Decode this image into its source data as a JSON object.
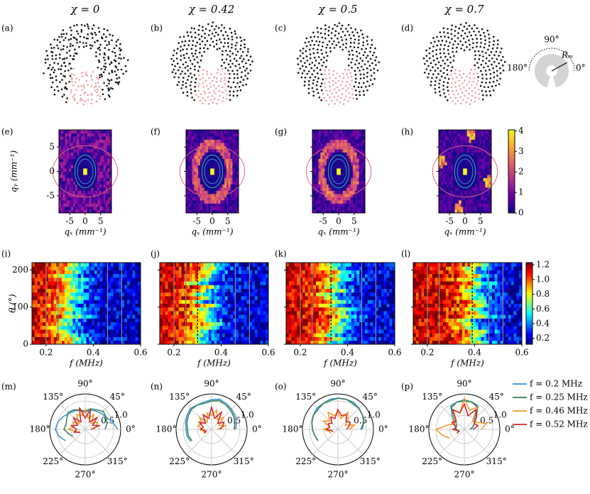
{
  "figure": {
    "column_titles": [
      "χ = 0",
      "χ = 0.42",
      "χ = 0.5",
      "χ = 0.7"
    ],
    "panel_labels": [
      "(a)",
      "(b)",
      "(c)",
      "(d)",
      "(e)",
      "(f)",
      "(g)",
      "(h)",
      "(i)",
      "(j)",
      "(k)",
      "(l)",
      "(m)",
      "(n)",
      "(o)",
      "(p)"
    ],
    "inset": {
      "angle_labels": [
        "90°",
        "180°",
        "0°"
      ],
      "radius_label": "Rₘ"
    },
    "momentum_maps": {
      "xlabel": "qₓ (mm⁻¹)",
      "ylabel": "qᵧ (mm⁻¹)",
      "xlim": [
        -8.5,
        8.5
      ],
      "ylim": [
        -8.5,
        8.5
      ],
      "xticks": [
        -5,
        0,
        5
      ],
      "yticks": [
        -5,
        0,
        5
      ],
      "colormap": "plasma",
      "clim": [
        0,
        4.05
      ],
      "cticks": [
        0,
        1,
        2,
        3,
        4
      ]
    },
    "spectra": {
      "xlabel": "f (MHz)",
      "ylabel": "θ (°)",
      "xlim": [
        0.14,
        0.6
      ],
      "ylim": [
        0,
        220
      ],
      "xticks": [
        0.2,
        0.4,
        0.6
      ],
      "yticks": [
        0,
        100,
        200
      ],
      "colormap": "jet",
      "clim": [
        0.12,
        1.23
      ],
      "cticks": [
        0.2,
        0.4,
        0.6,
        0.8,
        {
          "value": 1,
          "label": "1.0"
        },
        1.2
      ],
      "markers": [
        {
          "solid": [
            0.2,
            0.25,
            0.46,
            0.52
          ]
        },
        {
          "solid": [
            0.2,
            0.25,
            0.46,
            0.52
          ],
          "dashed": 0.3
        },
        {
          "solid": [
            0.2,
            0.25,
            0.46,
            0.52
          ],
          "dashed": 0.33
        },
        {
          "solid": [
            0.2,
            0.25,
            0.46,
            0.52
          ],
          "dashed": 0.39
        }
      ]
    },
    "legend": [
      {
        "name": "f = 0.2 MHz",
        "color": "#3a8fd6"
      },
      {
        "name": "f = 0.25 MHz",
        "color": "#2e7d4f"
      },
      {
        "name": "f = 0.46 MHz",
        "color": "#f39a1e"
      },
      {
        "name": "f = 0.52 MHz",
        "color": "#d62020"
      }
    ]
  },
  "chart_data": [
    {
      "type": "polar",
      "rlim": [
        0,
        1.25
      ],
      "rticks": [
        0.5,
        {
          "value": 1,
          "label": "1.0"
        }
      ],
      "angle_ticks": [
        {
          "value": 0,
          "label": "0°"
        },
        {
          "value": 45,
          "label": "45°"
        },
        {
          "value": 90,
          "label": "90°"
        },
        {
          "value": 135,
          "label": "135°"
        },
        {
          "value": 180,
          "label": "180°"
        },
        {
          "value": 225,
          "label": "225°"
        },
        {
          "value": 270,
          "label": "270°"
        },
        {
          "value": 315,
          "label": "315°"
        }
      ],
      "theta": [
        0,
        15,
        30,
        45,
        60,
        75,
        90,
        105,
        120,
        135,
        150,
        165,
        180,
        195,
        210
      ],
      "series": [
        {
          "values": [
            1.15,
            1.0,
            0.85,
            0.8,
            0.75,
            0.7,
            0.6,
            0.7,
            0.75,
            0.8,
            0.9,
            1.0,
            1.05,
            0.95,
            0.8
          ]
        },
        {
          "values": [
            0.7,
            0.8,
            0.85,
            0.9,
            0.8,
            0.75,
            0.65,
            0.7,
            0.8,
            0.85,
            0.75,
            0.7,
            0.75,
            0.6,
            0.5
          ]
        },
        {
          "values": [
            0.3,
            0.4,
            0.5,
            0.3,
            0.6,
            0.4,
            0.7,
            0.5,
            0.6,
            0.3,
            0.5,
            0.4,
            0.6,
            0.3,
            0.2
          ]
        },
        {
          "values": [
            0.2,
            0.5,
            0.3,
            0.6,
            0.3,
            0.7,
            0.4,
            0.8,
            0.3,
            0.6,
            0.3,
            0.5,
            0.3,
            0.4,
            0.2
          ]
        }
      ]
    },
    {
      "type": "polar",
      "rlim": [
        0,
        1.25
      ],
      "rticks": [
        0.5,
        {
          "value": 1,
          "label": "1.0"
        }
      ],
      "angle_ticks": [
        {
          "value": 0,
          "label": "0°"
        },
        {
          "value": 45,
          "label": "45°"
        },
        {
          "value": 90,
          "label": "90°"
        },
        {
          "value": 135,
          "label": "135°"
        },
        {
          "value": 180,
          "label": "180°"
        },
        {
          "value": 225,
          "label": "225°"
        },
        {
          "value": 270,
          "label": "270°"
        },
        {
          "value": 315,
          "label": "315°"
        }
      ],
      "theta": [
        0,
        15,
        30,
        45,
        60,
        75,
        90,
        105,
        120,
        135,
        150,
        165,
        180,
        195,
        210
      ],
      "series": [
        {
          "values": [
            0.85,
            0.9,
            0.95,
            1.0,
            1.05,
            1.1,
            1.05,
            1.0,
            1.0,
            1.05,
            1.0,
            0.95,
            0.9,
            0.9,
            0.85
          ]
        },
        {
          "values": [
            0.8,
            0.85,
            0.9,
            0.95,
            1.0,
            1.05,
            1.0,
            0.95,
            1.0,
            1.0,
            0.95,
            0.9,
            0.85,
            0.85,
            0.8
          ]
        },
        {
          "values": [
            0.2,
            0.5,
            0.3,
            0.6,
            0.4,
            0.7,
            0.5,
            0.6,
            0.3,
            0.6,
            0.4,
            0.5,
            0.3,
            0.3,
            0.2
          ]
        },
        {
          "values": [
            0.3,
            0.4,
            0.5,
            0.3,
            0.7,
            0.4,
            0.8,
            0.4,
            0.6,
            0.3,
            0.5,
            0.3,
            0.4,
            0.2,
            0.3
          ]
        }
      ]
    },
    {
      "type": "polar",
      "rlim": [
        0,
        1.25
      ],
      "rticks": [
        0.5,
        {
          "value": 1,
          "label": "1.0"
        }
      ],
      "angle_ticks": [
        {
          "value": 0,
          "label": "0°"
        },
        {
          "value": 45,
          "label": "45°"
        },
        {
          "value": 90,
          "label": "90°"
        },
        {
          "value": 135,
          "label": "135°"
        },
        {
          "value": 180,
          "label": "180°"
        },
        {
          "value": 225,
          "label": "225°"
        },
        {
          "value": 270,
          "label": "270°"
        },
        {
          "value": 315,
          "label": "315°"
        }
      ],
      "theta": [
        0,
        15,
        30,
        45,
        60,
        75,
        90,
        105,
        120,
        135,
        150,
        165,
        180,
        195,
        210
      ],
      "series": [
        {
          "values": [
            0.85,
            0.95,
            1.0,
            1.05,
            1.1,
            1.1,
            1.1,
            1.1,
            1.05,
            1.05,
            1.0,
            0.95,
            0.9,
            0.85,
            0.8
          ]
        },
        {
          "values": [
            0.8,
            0.95,
            1.0,
            1.05,
            1.05,
            1.1,
            1.1,
            1.05,
            1.05,
            1.0,
            1.0,
            0.95,
            0.9,
            0.85,
            0.8
          ]
        },
        {
          "values": [
            0.4,
            0.6,
            0.3,
            0.5,
            0.7,
            0.4,
            0.6,
            0.5,
            0.7,
            0.4,
            0.6,
            0.3,
            0.5,
            0.3,
            0.3
          ]
        },
        {
          "values": [
            0.3,
            0.4,
            0.5,
            0.4,
            0.6,
            0.5,
            0.7,
            0.4,
            0.5,
            0.3,
            0.4,
            0.3,
            0.4,
            0.2,
            0.2
          ]
        }
      ]
    },
    {
      "type": "polar",
      "rlim": [
        0,
        1.25
      ],
      "rticks": [
        0.5,
        {
          "value": 1,
          "label": "1.0"
        }
      ],
      "angle_ticks": [
        {
          "value": 0,
          "label": "0°"
        },
        {
          "value": 45,
          "label": "45°"
        },
        {
          "value": 90,
          "label": "90°"
        },
        {
          "value": 135,
          "label": "135°"
        },
        {
          "value": 180,
          "label": "180°"
        },
        {
          "value": 225,
          "label": "225°"
        },
        {
          "value": 270,
          "label": "270°"
        },
        {
          "value": 315,
          "label": "315°"
        }
      ],
      "theta": [
        0,
        15,
        30,
        45,
        60,
        75,
        90,
        105,
        120,
        135,
        150,
        165,
        180,
        195,
        210
      ],
      "series": [
        {
          "values": [
            0.2,
            0.3,
            0.4,
            0.5,
            0.9,
            1.0,
            1.05,
            1.0,
            0.95,
            0.6,
            0.4,
            0.3,
            0.3,
            0.2,
            0.2
          ]
        },
        {
          "values": [
            0.2,
            0.3,
            0.4,
            0.6,
            0.95,
            1.0,
            1.0,
            1.0,
            0.9,
            0.5,
            0.3,
            0.3,
            0.3,
            0.2,
            0.2
          ]
        },
        {
          "values": [
            0.6,
            0.8,
            0.5,
            0.4,
            0.9,
            0.7,
            1.1,
            0.6,
            0.8,
            0.5,
            0.4,
            0.6,
            1.0,
            0.8,
            0.6
          ]
        },
        {
          "values": [
            0.3,
            0.5,
            0.4,
            0.6,
            0.8,
            0.5,
            0.9,
            0.6,
            0.8,
            0.4,
            0.5,
            0.3,
            0.4,
            0.2,
            0.3
          ]
        }
      ]
    }
  ]
}
